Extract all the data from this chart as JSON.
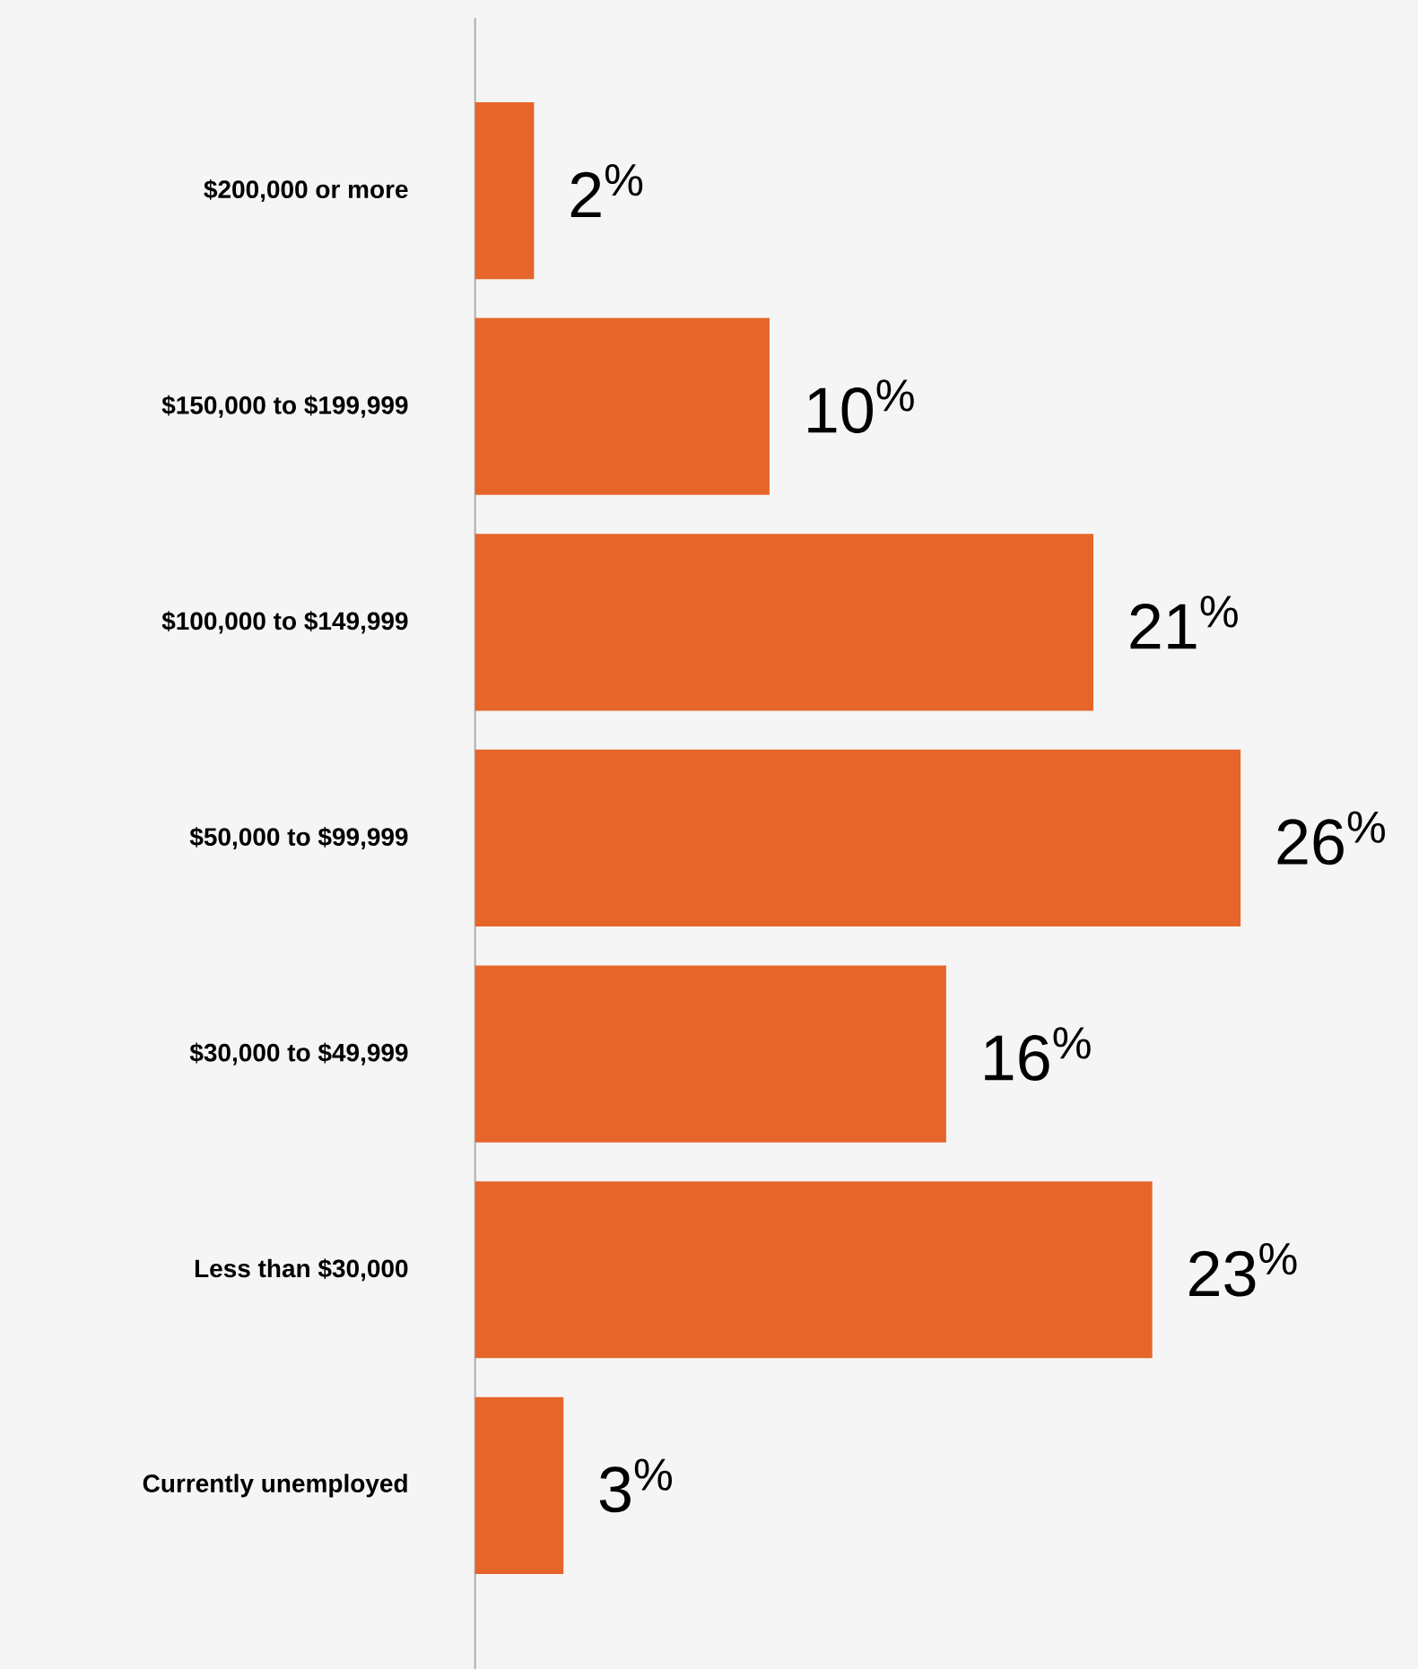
{
  "chart_data": {
    "type": "bar",
    "orientation": "horizontal",
    "categories": [
      "$200,000 or more",
      "$150,000 to $199,999",
      "$100,000 to $149,999",
      "$50,000 to $99,999",
      "$30,000 to $49,999",
      "Less than $30,000",
      "Currently unemployed"
    ],
    "values": [
      2,
      10,
      21,
      26,
      16,
      23,
      3
    ],
    "value_labels": [
      "2$^{%}$",
      "10$^{%}$",
      "21$^{%}$",
      "26$^{%}$",
      "16$^{%}$",
      "23$^{%}$",
      "3$^{%}$"
    ],
    "color": "#e5652a"
  }
}
